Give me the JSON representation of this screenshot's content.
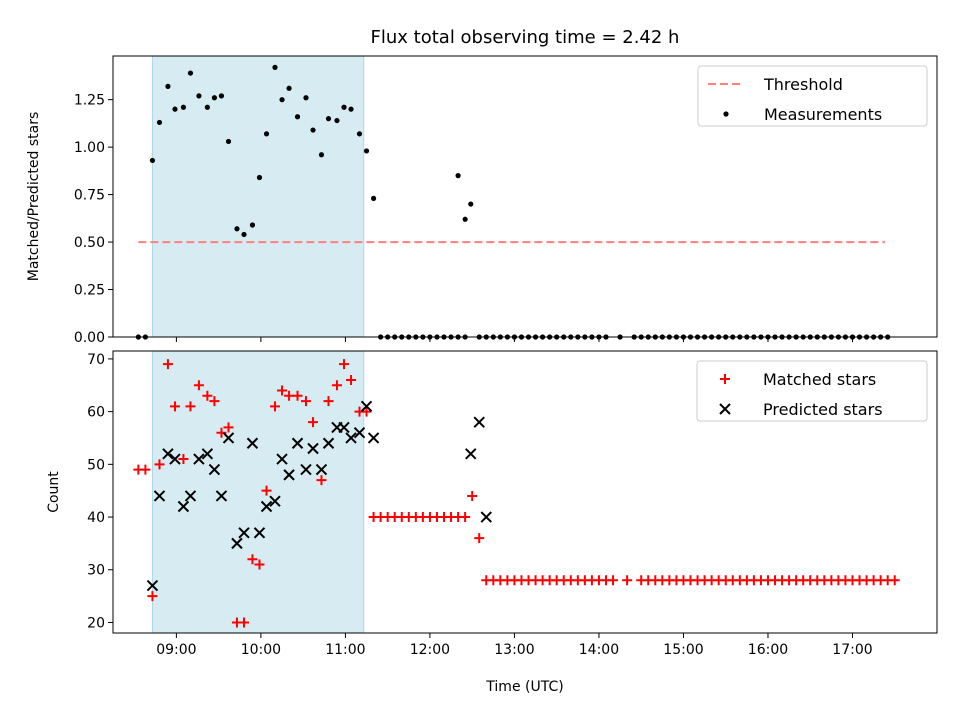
{
  "title": "Flux total observing time = 2.42 h",
  "colors": {
    "highlight": "#add8e6",
    "threshold": "#ff7f7f",
    "measurement": "#000000",
    "matched": "#ff0000",
    "predicted": "#000000"
  },
  "chart_data": [
    {
      "type": "scatter",
      "panel": "top",
      "xlabel": "",
      "ylabel": "Matched/Predicted stars",
      "xlim": [
        "08:15",
        "18:00"
      ],
      "ylim": [
        0,
        1.48
      ],
      "yticks": [
        "0.00",
        "0.25",
        "0.50",
        "0.75",
        "1.00",
        "1.25"
      ],
      "highlight_span": [
        "08:43",
        "11:13"
      ],
      "threshold": {
        "name": "Threshold",
        "y": 0.5,
        "x_range": [
          "08:33",
          "17:23"
        ]
      },
      "legend": [
        "Threshold",
        "Measurements"
      ],
      "legend_position": "upper-right",
      "series": [
        {
          "name": "Measurements",
          "points": [
            [
              "08:33",
              0
            ],
            [
              "08:38",
              0
            ],
            [
              "08:43",
              0.93
            ],
            [
              "08:48",
              1.13
            ],
            [
              "08:54",
              1.32
            ],
            [
              "08:59",
              1.2
            ],
            [
              "09:05",
              1.21
            ],
            [
              "09:10",
              1.39
            ],
            [
              "09:16",
              1.27
            ],
            [
              "09:22",
              1.21
            ],
            [
              "09:27",
              1.26
            ],
            [
              "09:32",
              1.27
            ],
            [
              "09:37",
              1.03
            ],
            [
              "09:43",
              0.57
            ],
            [
              "09:48",
              0.54
            ],
            [
              "09:54",
              0.59
            ],
            [
              "09:59",
              0.84
            ],
            [
              "10:04",
              1.07
            ],
            [
              "10:10",
              1.42
            ],
            [
              "10:15",
              1.25
            ],
            [
              "10:20",
              1.31
            ],
            [
              "10:26",
              1.16
            ],
            [
              "10:32",
              1.26
            ],
            [
              "10:37",
              1.09
            ],
            [
              "10:43",
              0.96
            ],
            [
              "10:48",
              1.15
            ],
            [
              "10:54",
              1.14
            ],
            [
              "10:59",
              1.21
            ],
            [
              "11:04",
              1.2
            ],
            [
              "11:10",
              1.07
            ],
            [
              "11:15",
              0.98
            ],
            [
              "11:20",
              0.73
            ],
            [
              "11:25",
              0
            ],
            [
              "11:30",
              0
            ],
            [
              "11:35",
              0
            ],
            [
              "11:40",
              0
            ],
            [
              "11:45",
              0
            ],
            [
              "11:50",
              0
            ],
            [
              "11:55",
              0
            ],
            [
              "12:00",
              0
            ],
            [
              "12:05",
              0
            ],
            [
              "12:10",
              0
            ],
            [
              "12:15",
              0
            ],
            [
              "12:20",
              0
            ],
            [
              "12:25",
              0
            ],
            [
              "12:20",
              0.85
            ],
            [
              "12:25",
              0.62
            ],
            [
              "12:29",
              0.7
            ],
            [
              "12:35",
              0
            ],
            [
              "12:40",
              0
            ],
            [
              "12:45",
              0
            ],
            [
              "12:50",
              0
            ],
            [
              "12:55",
              0
            ],
            [
              "13:00",
              0
            ],
            [
              "13:05",
              0
            ],
            [
              "13:10",
              0
            ],
            [
              "13:15",
              0
            ],
            [
              "13:20",
              0
            ],
            [
              "13:25",
              0
            ],
            [
              "13:30",
              0
            ],
            [
              "13:35",
              0
            ],
            [
              "13:40",
              0
            ],
            [
              "13:45",
              0
            ],
            [
              "13:50",
              0
            ],
            [
              "13:55",
              0
            ],
            [
              "14:00",
              0
            ],
            [
              "14:05",
              0
            ],
            [
              "14:15",
              0
            ],
            [
              "14:25",
              0
            ],
            [
              "14:30",
              0
            ],
            [
              "14:35",
              0
            ],
            [
              "14:40",
              0
            ],
            [
              "14:45",
              0
            ],
            [
              "14:50",
              0
            ],
            [
              "14:55",
              0
            ],
            [
              "15:00",
              0
            ],
            [
              "15:05",
              0
            ],
            [
              "15:10",
              0
            ],
            [
              "15:15",
              0
            ],
            [
              "15:20",
              0
            ],
            [
              "15:25",
              0
            ],
            [
              "15:30",
              0
            ],
            [
              "15:35",
              0
            ],
            [
              "15:40",
              0
            ],
            [
              "15:45",
              0
            ],
            [
              "15:50",
              0
            ],
            [
              "15:55",
              0
            ],
            [
              "16:00",
              0
            ],
            [
              "16:05",
              0
            ],
            [
              "16:10",
              0
            ],
            [
              "16:15",
              0
            ],
            [
              "16:20",
              0
            ],
            [
              "16:25",
              0
            ],
            [
              "16:30",
              0
            ],
            [
              "16:35",
              0
            ],
            [
              "16:40",
              0
            ],
            [
              "16:45",
              0
            ],
            [
              "16:50",
              0
            ],
            [
              "16:55",
              0
            ],
            [
              "17:00",
              0
            ],
            [
              "17:05",
              0
            ],
            [
              "17:10",
              0
            ],
            [
              "17:15",
              0
            ],
            [
              "17:20",
              0
            ],
            [
              "17:25",
              0
            ]
          ]
        }
      ]
    },
    {
      "type": "scatter",
      "panel": "bottom",
      "xlabel": "Time (UTC)",
      "ylabel": "Count",
      "xlim": [
        "08:15",
        "18:00"
      ],
      "ylim": [
        18,
        71.5
      ],
      "yticks": [
        "20",
        "30",
        "40",
        "50",
        "60",
        "70"
      ],
      "xticks": [
        "09:00",
        "10:00",
        "11:00",
        "12:00",
        "13:00",
        "14:00",
        "15:00",
        "16:00",
        "17:00"
      ],
      "highlight_span": [
        "08:43",
        "11:13"
      ],
      "legend": [
        "Matched stars",
        "Predicted stars"
      ],
      "legend_position": "upper-right",
      "series": [
        {
          "name": "Matched stars",
          "marker": "plus",
          "points": [
            [
              "08:33",
              49
            ],
            [
              "08:38",
              49
            ],
            [
              "08:43",
              25
            ],
            [
              "08:48",
              50
            ],
            [
              "08:54",
              69
            ],
            [
              "08:59",
              61
            ],
            [
              "09:05",
              51
            ],
            [
              "09:10",
              61
            ],
            [
              "09:16",
              65
            ],
            [
              "09:22",
              63
            ],
            [
              "09:27",
              62
            ],
            [
              "09:32",
              56
            ],
            [
              "09:37",
              57
            ],
            [
              "09:43",
              20
            ],
            [
              "09:48",
              20
            ],
            [
              "09:54",
              32
            ],
            [
              "09:59",
              31
            ],
            [
              "10:04",
              45
            ],
            [
              "10:10",
              61
            ],
            [
              "10:15",
              64
            ],
            [
              "10:20",
              63
            ],
            [
              "10:26",
              63
            ],
            [
              "10:32",
              62
            ],
            [
              "10:37",
              58
            ],
            [
              "10:43",
              47
            ],
            [
              "10:48",
              62
            ],
            [
              "10:54",
              65
            ],
            [
              "10:59",
              69
            ],
            [
              "11:04",
              66
            ],
            [
              "11:10",
              60
            ],
            [
              "11:15",
              60
            ],
            [
              "11:20",
              40
            ],
            [
              "11:25",
              40
            ],
            [
              "11:30",
              40
            ],
            [
              "11:35",
              40
            ],
            [
              "11:40",
              40
            ],
            [
              "11:45",
              40
            ],
            [
              "11:50",
              40
            ],
            [
              "11:55",
              40
            ],
            [
              "12:00",
              40
            ],
            [
              "12:05",
              40
            ],
            [
              "12:10",
              40
            ],
            [
              "12:15",
              40
            ],
            [
              "12:20",
              40
            ],
            [
              "12:25",
              40
            ],
            [
              "12:30",
              44
            ],
            [
              "12:35",
              36
            ],
            [
              "12:40",
              28
            ],
            [
              "12:45",
              28
            ],
            [
              "12:50",
              28
            ],
            [
              "12:55",
              28
            ],
            [
              "13:00",
              28
            ],
            [
              "13:05",
              28
            ],
            [
              "13:10",
              28
            ],
            [
              "13:15",
              28
            ],
            [
              "13:20",
              28
            ],
            [
              "13:25",
              28
            ],
            [
              "13:30",
              28
            ],
            [
              "13:35",
              28
            ],
            [
              "13:40",
              28
            ],
            [
              "13:45",
              28
            ],
            [
              "13:50",
              28
            ],
            [
              "13:55",
              28
            ],
            [
              "14:00",
              28
            ],
            [
              "14:05",
              28
            ],
            [
              "14:10",
              28
            ],
            [
              "14:20",
              28
            ],
            [
              "14:30",
              28
            ],
            [
              "14:35",
              28
            ],
            [
              "14:40",
              28
            ],
            [
              "14:45",
              28
            ],
            [
              "14:50",
              28
            ],
            [
              "14:55",
              28
            ],
            [
              "15:00",
              28
            ],
            [
              "15:05",
              28
            ],
            [
              "15:10",
              28
            ],
            [
              "15:15",
              28
            ],
            [
              "15:20",
              28
            ],
            [
              "15:25",
              28
            ],
            [
              "15:30",
              28
            ],
            [
              "15:35",
              28
            ],
            [
              "15:40",
              28
            ],
            [
              "15:45",
              28
            ],
            [
              "15:50",
              28
            ],
            [
              "15:55",
              28
            ],
            [
              "16:00",
              28
            ],
            [
              "16:05",
              28
            ],
            [
              "16:10",
              28
            ],
            [
              "16:15",
              28
            ],
            [
              "16:20",
              28
            ],
            [
              "16:25",
              28
            ],
            [
              "16:30",
              28
            ],
            [
              "16:35",
              28
            ],
            [
              "16:40",
              28
            ],
            [
              "16:45",
              28
            ],
            [
              "16:50",
              28
            ],
            [
              "16:55",
              28
            ],
            [
              "17:00",
              28
            ],
            [
              "17:05",
              28
            ],
            [
              "17:10",
              28
            ],
            [
              "17:15",
              28
            ],
            [
              "17:20",
              28
            ],
            [
              "17:25",
              28
            ],
            [
              "17:30",
              28
            ]
          ]
        },
        {
          "name": "Predicted stars",
          "marker": "x",
          "points": [
            [
              "08:43",
              27
            ],
            [
              "08:48",
              44
            ],
            [
              "08:54",
              52
            ],
            [
              "08:59",
              51
            ],
            [
              "09:05",
              42
            ],
            [
              "09:10",
              44
            ],
            [
              "09:16",
              51
            ],
            [
              "09:22",
              52
            ],
            [
              "09:27",
              49
            ],
            [
              "09:32",
              44
            ],
            [
              "09:37",
              55
            ],
            [
              "09:43",
              35
            ],
            [
              "09:48",
              37
            ],
            [
              "09:54",
              54
            ],
            [
              "09:59",
              37
            ],
            [
              "10:04",
              42
            ],
            [
              "10:10",
              43
            ],
            [
              "10:15",
              51
            ],
            [
              "10:20",
              48
            ],
            [
              "10:26",
              54
            ],
            [
              "10:32",
              49
            ],
            [
              "10:37",
              53
            ],
            [
              "10:43",
              49
            ],
            [
              "10:48",
              54
            ],
            [
              "10:54",
              57
            ],
            [
              "10:59",
              57
            ],
            [
              "11:04",
              55
            ],
            [
              "11:10",
              56
            ],
            [
              "11:15",
              61
            ],
            [
              "11:20",
              55
            ],
            [
              "12:29",
              52
            ],
            [
              "12:35",
              58
            ],
            [
              "12:40",
              40
            ]
          ]
        }
      ]
    }
  ]
}
